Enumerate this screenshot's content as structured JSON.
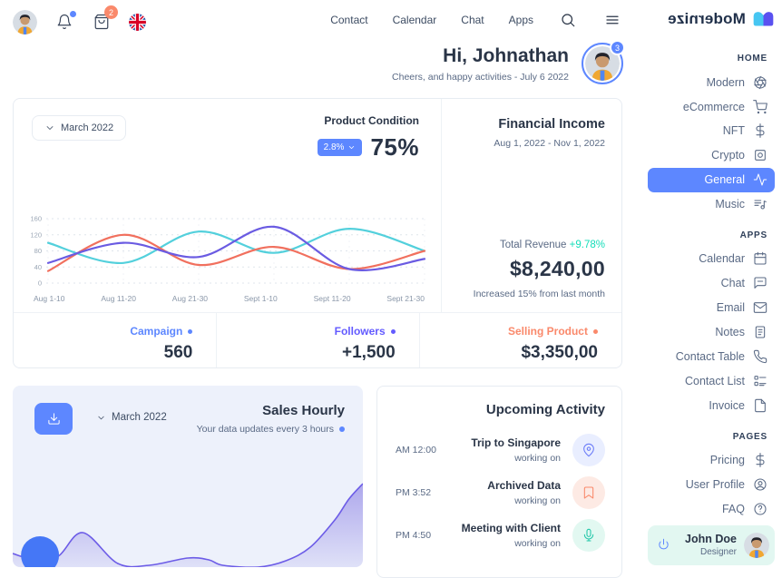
{
  "colors": {
    "primary_blue": "#5d87ff",
    "indigo": "#635bff",
    "coral_orange": "#fa896b",
    "teal_success": "#13deb9",
    "line_cyan": "#53d0dc",
    "line_coral": "#f1705e",
    "line_indigo": "#6a5be2",
    "area_purple": "#6c5ce7",
    "marker_blue": "#4577f6",
    "text_dark": "#2a3547",
    "text_muted": "#5a6a85",
    "activity_icon_colors": [
      "#6b7cf8",
      "#fa896b",
      "#22c7a9"
    ],
    "activity_icon_bgs": [
      "#e9eeff",
      "#fdeae4",
      "#e2f8f1"
    ]
  },
  "topbar": {
    "icons": [
      "user-avatar",
      "bell-icon",
      "basket-icon",
      "uk-flag-icon",
      "search-icon",
      "menu-icon"
    ],
    "cart_badge": "2",
    "nav": [
      {
        "label": "Contact"
      },
      {
        "label": "Calendar"
      },
      {
        "label": "Chat"
      },
      {
        "label": "Apps"
      }
    ],
    "logo_text": "Modernize"
  },
  "greeting": {
    "title": "Hi, Johnathan",
    "subtitle": "Cheers, and happy activities - July 6 2022",
    "avatar_badge": "3"
  },
  "overview_card": {
    "period_selector": "March 2022",
    "product_condition": {
      "label": "Product Condition",
      "badge": "2.8%",
      "value": "75%"
    },
    "financial": {
      "title": "Financial Income",
      "range": "Aug 1, 2022 - Nov 1, 2022",
      "total_revenue_label": "Total Revenue",
      "total_revenue_delta": "+9.78%",
      "amount": "$8,240,00",
      "note": "Increased 15% from last month"
    },
    "stats": [
      {
        "label": "Campaign",
        "value": "560",
        "color": "#5d87ff"
      },
      {
        "label": "Followers",
        "value": "+1,500",
        "color": "#635bff"
      },
      {
        "label": "Selling Product",
        "value": "$3,350,00",
        "color": "#fa896b"
      }
    ]
  },
  "chart_data": [
    {
      "type": "line",
      "title": "",
      "categories": [
        "Aug 1-10",
        "Aug 11-20",
        "Aug 21-30",
        "Sept 1-10",
        "Sept 11-20",
        "Sept 21-30"
      ],
      "series": [
        {
          "name": "series-cyan",
          "color": "#53d0dc",
          "values": [
            100,
            50,
            128,
            75,
            135,
            80
          ]
        },
        {
          "name": "series-coral",
          "color": "#f1705e",
          "values": [
            30,
            120,
            45,
            90,
            35,
            80
          ]
        },
        {
          "name": "series-indigo",
          "color": "#6a5be2",
          "values": [
            50,
            100,
            65,
            140,
            35,
            60
          ]
        }
      ],
      "ylim": [
        0,
        160
      ],
      "yticks": [
        0,
        40,
        80,
        120,
        160
      ],
      "grid": true,
      "legend": false
    },
    {
      "type": "area",
      "title": "Sales Hourly",
      "color": "#6c5ce7",
      "points": [
        [
          0,
          7.5
        ],
        [
          6.5,
          4
        ],
        [
          13,
          6
        ],
        [
          20,
          19
        ],
        [
          30,
          2
        ],
        [
          39,
          1
        ],
        [
          50,
          5
        ],
        [
          56,
          4
        ],
        [
          60,
          1
        ],
        [
          70,
          0
        ],
        [
          78,
          3.5
        ],
        [
          85,
          11
        ],
        [
          92,
          26
        ],
        [
          96,
          37.5
        ],
        [
          100,
          46
        ]
      ],
      "marker": {
        "x": 7.8,
        "y": 6.5,
        "color": "#4577f6"
      },
      "ylim": [
        0,
        100
      ],
      "grid": false,
      "legend": false
    }
  ],
  "sales_card": {
    "title": "Sales Hourly",
    "subtitle": "Your data updates every 3 hours",
    "period_selector": "March 2022",
    "download_icon": "download-icon"
  },
  "activity_card": {
    "title": "Upcoming Activity",
    "items": [
      {
        "time": "AM 12:00",
        "title": "Trip to Singapore",
        "status": "working on",
        "icon": "location-pin-icon"
      },
      {
        "time": "PM 3:52",
        "title": "Archived Data",
        "status": "working on",
        "icon": "bookmark-icon"
      },
      {
        "time": "PM 4:50",
        "title": "Meeting with Client",
        "status": "working on",
        "icon": "microphone-icon"
      }
    ]
  },
  "sidebar": {
    "sections": [
      {
        "header": "HOME",
        "items": [
          {
            "label": "Modern",
            "icon": "aperture-icon"
          },
          {
            "label": "eCommerce",
            "icon": "cart-icon"
          },
          {
            "label": "NFT",
            "icon": "dollar-icon"
          },
          {
            "label": "Crypto",
            "icon": "crypto-icon"
          },
          {
            "label": "General",
            "icon": "pulse-icon",
            "active": true
          },
          {
            "label": "Music",
            "icon": "music-icon"
          }
        ]
      },
      {
        "header": "APPS",
        "items": [
          {
            "label": "Calendar",
            "icon": "calendar-icon"
          },
          {
            "label": "Chat",
            "icon": "chat-icon"
          },
          {
            "label": "Email",
            "icon": "mail-icon"
          },
          {
            "label": "Notes",
            "icon": "notes-icon"
          },
          {
            "label": "Contact Table",
            "icon": "phone-icon"
          },
          {
            "label": "Contact List",
            "icon": "contact-list-icon"
          },
          {
            "label": "Invoice",
            "icon": "invoice-icon"
          }
        ]
      },
      {
        "header": "PAGES",
        "items": [
          {
            "label": "Pricing",
            "icon": "dollar-icon"
          },
          {
            "label": "User Profile",
            "icon": "user-circle-icon"
          },
          {
            "label": "FAQ",
            "icon": "help-circle-icon"
          }
        ]
      }
    ],
    "user": {
      "name": "John Doe",
      "role": "Designer",
      "icon": "power-icon"
    }
  }
}
